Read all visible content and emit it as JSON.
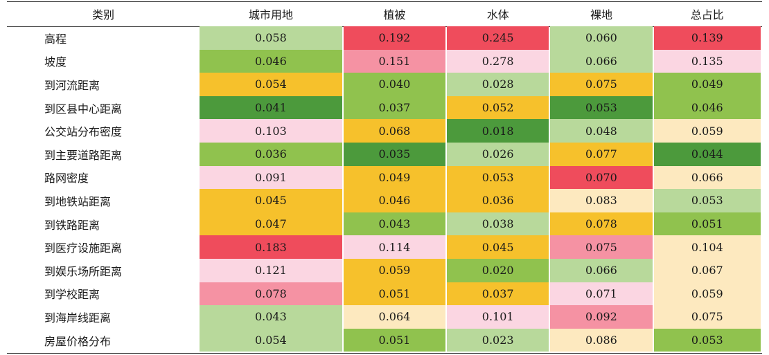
{
  "table": {
    "headers": [
      "类别",
      "城市用地",
      "植被",
      "水体",
      "裸地",
      "总占比"
    ],
    "rows": [
      {
        "label": "高程",
        "values": [
          "0.058",
          "0.192",
          "0.245",
          "0.060",
          "0.139"
        ],
        "colors": [
          "#b8d99b",
          "#ef4c5c",
          "#ef4c5c",
          "#b8d99b",
          "#ef4c5c"
        ]
      },
      {
        "label": "坡度",
        "values": [
          "0.046",
          "0.151",
          "0.278",
          "0.066",
          "0.135"
        ],
        "colors": [
          "#90c24e",
          "#f592a3",
          "#fbd6e2",
          "#b8d99b",
          "#fbd6e2"
        ]
      },
      {
        "label": "到河流距离",
        "values": [
          "0.054",
          "0.040",
          "0.028",
          "0.075",
          "0.049"
        ],
        "colors": [
          "#f6c12c",
          "#90c24e",
          "#b8d99b",
          "#f6c12c",
          "#90c24e"
        ]
      },
      {
        "label": "到区县中心距离",
        "values": [
          "0.041",
          "0.037",
          "0.052",
          "0.053",
          "0.046"
        ],
        "colors": [
          "#4c9a3c",
          "#90c24e",
          "#f6c12c",
          "#4c9a3c",
          "#90c24e"
        ]
      },
      {
        "label": "公交站分布密度",
        "values": [
          "0.103",
          "0.068",
          "0.018",
          "0.048",
          "0.059"
        ],
        "colors": [
          "#fbd6e2",
          "#f6c12c",
          "#4c9a3c",
          "#b8d99b",
          "#fde9bf"
        ]
      },
      {
        "label": "到主要道路距离",
        "values": [
          "0.036",
          "0.035",
          "0.026",
          "0.077",
          "0.044"
        ],
        "colors": [
          "#90c24e",
          "#4c9a3c",
          "#b8d99b",
          "#f6c12c",
          "#4c9a3c"
        ]
      },
      {
        "label": "路网密度",
        "values": [
          "0.091",
          "0.049",
          "0.053",
          "0.070",
          "0.066"
        ],
        "colors": [
          "#fbd6e2",
          "#f6c12c",
          "#f6c12c",
          "#ef4c5c",
          "#fde9bf"
        ]
      },
      {
        "label": "到地铁站距离",
        "values": [
          "0.045",
          "0.046",
          "0.036",
          "0.083",
          "0.053"
        ],
        "colors": [
          "#f6c12c",
          "#f6c12c",
          "#f6c12c",
          "#fde9bf",
          "#b8d99b"
        ]
      },
      {
        "label": "到铁路距离",
        "values": [
          "0.047",
          "0.043",
          "0.038",
          "0.078",
          "0.051"
        ],
        "colors": [
          "#f6c12c",
          "#90c24e",
          "#b8d99b",
          "#f6c12c",
          "#90c24e"
        ]
      },
      {
        "label": "到医疗设施距离",
        "values": [
          "0.183",
          "0.114",
          "0.045",
          "0.075",
          "0.104"
        ],
        "colors": [
          "#ef4c5c",
          "#fbd6e2",
          "#f6c12c",
          "#f592a3",
          "#fde9bf"
        ]
      },
      {
        "label": "到娱乐场所距离",
        "values": [
          "0.121",
          "0.059",
          "0.020",
          "0.066",
          "0.067"
        ],
        "colors": [
          "#fbd6e2",
          "#f6c12c",
          "#90c24e",
          "#b8d99b",
          "#fde9bf"
        ]
      },
      {
        "label": "到学校距离",
        "values": [
          "0.078",
          "0.051",
          "0.037",
          "0.071",
          "0.059"
        ],
        "colors": [
          "#f592a3",
          "#f6c12c",
          "#f6c12c",
          "#fbd6e2",
          "#fde9bf"
        ]
      },
      {
        "label": "到海岸线距离",
        "values": [
          "0.043",
          "0.064",
          "0.101",
          "0.092",
          "0.075"
        ],
        "colors": [
          "#b8d99b",
          "#fde9bf",
          "#fbd6e2",
          "#f592a3",
          "#fde9bf"
        ]
      },
      {
        "label": "房屋价格分布",
        "values": [
          "0.054",
          "0.051",
          "0.023",
          "0.086",
          "0.053"
        ],
        "colors": [
          "#b8d99b",
          "#90c24e",
          "#b8d99b",
          "#fde9bf",
          "#90c24e"
        ]
      }
    ]
  }
}
